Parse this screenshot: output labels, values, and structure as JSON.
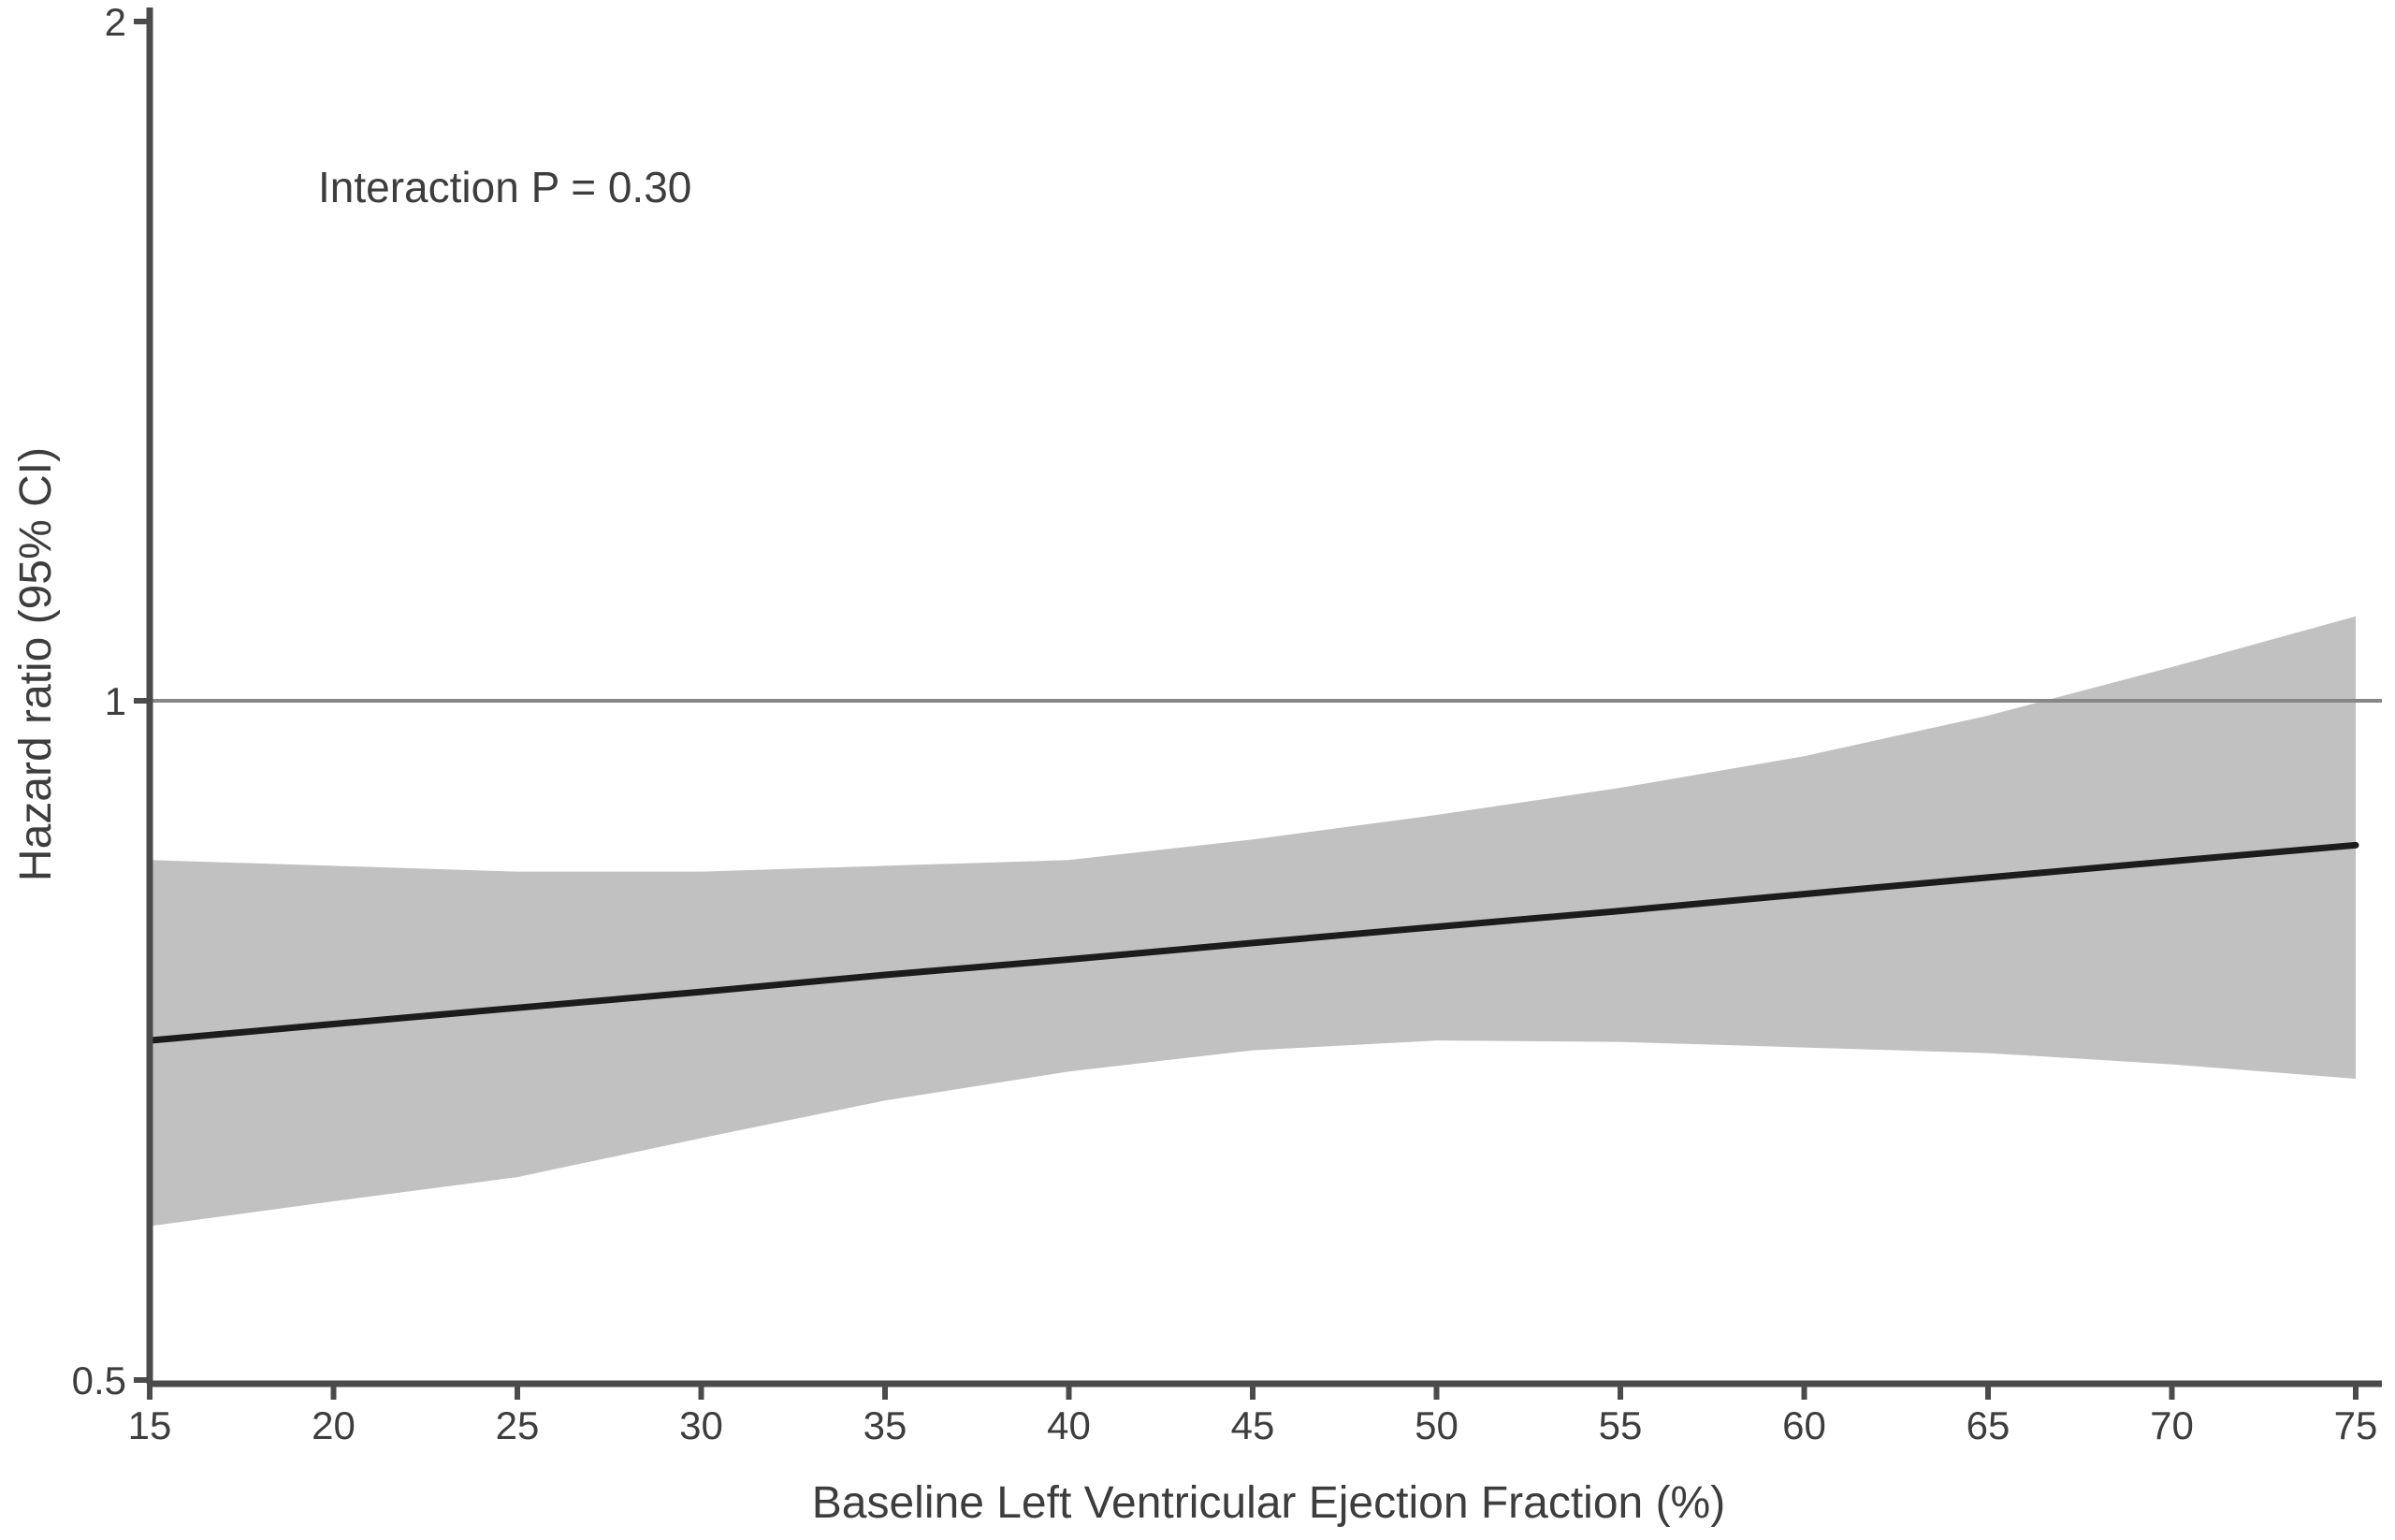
{
  "chart_data": {
    "type": "line",
    "title": "",
    "xlabel": "Baseline Left Ventricular Ejection Fraction (%)",
    "ylabel": "Hazard ratio (95% CI)",
    "annotation": "Interaction P = 0.30",
    "x_scale": "linear",
    "y_scale": "log2",
    "xlim": [
      15,
      75
    ],
    "ylim": [
      0.5,
      2
    ],
    "x_ticks": [
      15,
      20,
      25,
      30,
      35,
      40,
      45,
      50,
      55,
      60,
      65,
      70,
      75
    ],
    "y_ticks": [
      2,
      1,
      0.5
    ],
    "y_tick_labels": [
      "2",
      "1",
      "0.5"
    ],
    "reference_line_y": 1.0,
    "grid": false,
    "legend": "none",
    "series": [
      {
        "name": "Hazard ratio",
        "x": [
          15,
          20,
          25,
          30,
          35,
          40,
          45,
          50,
          55,
          60,
          65,
          70,
          75
        ],
        "y": [
          0.707,
          0.719,
          0.731,
          0.743,
          0.756,
          0.768,
          0.781,
          0.794,
          0.807,
          0.821,
          0.835,
          0.849,
          0.863
        ]
      }
    ],
    "ci_band": {
      "label": "95% CI",
      "x": [
        15,
        20,
        25,
        30,
        35,
        40,
        45,
        50,
        55,
        60,
        65,
        70,
        75
      ],
      "upper": [
        0.85,
        0.845,
        0.84,
        0.84,
        0.845,
        0.85,
        0.868,
        0.89,
        0.915,
        0.945,
        0.985,
        1.035,
        1.09
      ],
      "lower": [
        0.585,
        0.6,
        0.615,
        0.64,
        0.665,
        0.685,
        0.7,
        0.707,
        0.706,
        0.702,
        0.698,
        0.69,
        0.68
      ]
    },
    "colors": {
      "line": "#1c1c1c",
      "band": "#c1c1c1",
      "axis": "#4b4b4b",
      "reference_line": "#878787",
      "text": "#3d3d3d",
      "background": "#ffffff"
    }
  }
}
